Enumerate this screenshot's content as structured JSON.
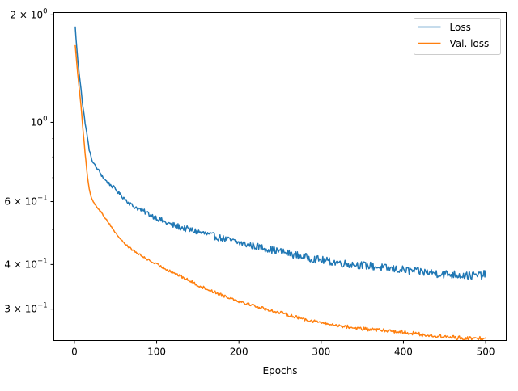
{
  "chart_data": {
    "type": "line",
    "title": "",
    "xlabel": "Epochs",
    "ylabel": "",
    "xlim": [
      -25,
      525
    ],
    "ylim": [
      0.245,
      2.03
    ],
    "yscale": "log",
    "grid": false,
    "legend_position": "top-right",
    "x_ticks": [
      0,
      100,
      200,
      300,
      400,
      500
    ],
    "x_tick_labels": [
      "0",
      "100",
      "200",
      "300",
      "400",
      "500"
    ],
    "y_major_ticks": [
      {
        "value": 2.0,
        "base": "2 × 10",
        "exp": "0"
      },
      {
        "value": 1.0,
        "base": "10",
        "exp": "0"
      },
      {
        "value": 0.6,
        "base": "6 × 10",
        "exp": "−1"
      },
      {
        "value": 0.4,
        "base": "4 × 10",
        "exp": "−1"
      },
      {
        "value": 0.3,
        "base": "3 × 10",
        "exp": "−1"
      }
    ],
    "y_minor_ticks": [
      0.9,
      0.8,
      0.7,
      0.5
    ],
    "series": [
      {
        "name": "Loss",
        "color": "#1f77b4",
        "noise": 0.018,
        "x": [
          1,
          3,
          5,
          8,
          10,
          13,
          16,
          18,
          20,
          23,
          26,
          30,
          35,
          40,
          45,
          50,
          55,
          60,
          65,
          70,
          80,
          90,
          100,
          110,
          120,
          130,
          140,
          150,
          160,
          170,
          180,
          190,
          200,
          210,
          220,
          230,
          240,
          250,
          260,
          270,
          280,
          290,
          300,
          310,
          320,
          330,
          340,
          350,
          360,
          370,
          380,
          390,
          400,
          410,
          420,
          430,
          440,
          450,
          460,
          470,
          480,
          490,
          500
        ],
        "y": [
          1.85,
          1.6,
          1.42,
          1.25,
          1.12,
          1.0,
          0.9,
          0.84,
          0.8,
          0.77,
          0.75,
          0.73,
          0.7,
          0.68,
          0.665,
          0.65,
          0.63,
          0.615,
          0.6,
          0.585,
          0.57,
          0.555,
          0.54,
          0.525,
          0.515,
          0.508,
          0.5,
          0.494,
          0.487,
          0.48,
          0.473,
          0.467,
          0.46,
          0.455,
          0.45,
          0.445,
          0.44,
          0.435,
          0.43,
          0.425,
          0.42,
          0.415,
          0.412,
          0.408,
          0.405,
          0.402,
          0.4,
          0.398,
          0.396,
          0.393,
          0.39,
          0.388,
          0.386,
          0.384,
          0.382,
          0.38,
          0.378,
          0.376,
          0.375,
          0.374,
          0.373,
          0.372,
          0.375
        ]
      },
      {
        "name": "Val. loss",
        "color": "#ff7f0e",
        "noise": 0.008,
        "x": [
          1,
          3,
          5,
          8,
          10,
          13,
          16,
          18,
          20,
          23,
          26,
          30,
          35,
          40,
          45,
          50,
          55,
          60,
          65,
          70,
          80,
          90,
          100,
          110,
          120,
          130,
          140,
          150,
          160,
          170,
          180,
          190,
          200,
          210,
          220,
          230,
          240,
          250,
          260,
          270,
          280,
          290,
          300,
          310,
          320,
          330,
          340,
          350,
          360,
          370,
          380,
          390,
          400,
          410,
          420,
          430,
          440,
          450,
          460,
          470,
          480,
          490,
          500
        ],
        "y": [
          1.65,
          1.45,
          1.3,
          1.12,
          0.98,
          0.82,
          0.7,
          0.65,
          0.62,
          0.6,
          0.585,
          0.57,
          0.55,
          0.53,
          0.51,
          0.49,
          0.475,
          0.46,
          0.45,
          0.44,
          0.425,
          0.412,
          0.4,
          0.39,
          0.38,
          0.37,
          0.36,
          0.35,
          0.342,
          0.335,
          0.328,
          0.322,
          0.316,
          0.311,
          0.306,
          0.301,
          0.297,
          0.293,
          0.289,
          0.285,
          0.281,
          0.278,
          0.275,
          0.272,
          0.27,
          0.268,
          0.266,
          0.264,
          0.263,
          0.262,
          0.261,
          0.26,
          0.259,
          0.257,
          0.255,
          0.253,
          0.252,
          0.251,
          0.25,
          0.249,
          0.248,
          0.248,
          0.25
        ]
      }
    ]
  }
}
